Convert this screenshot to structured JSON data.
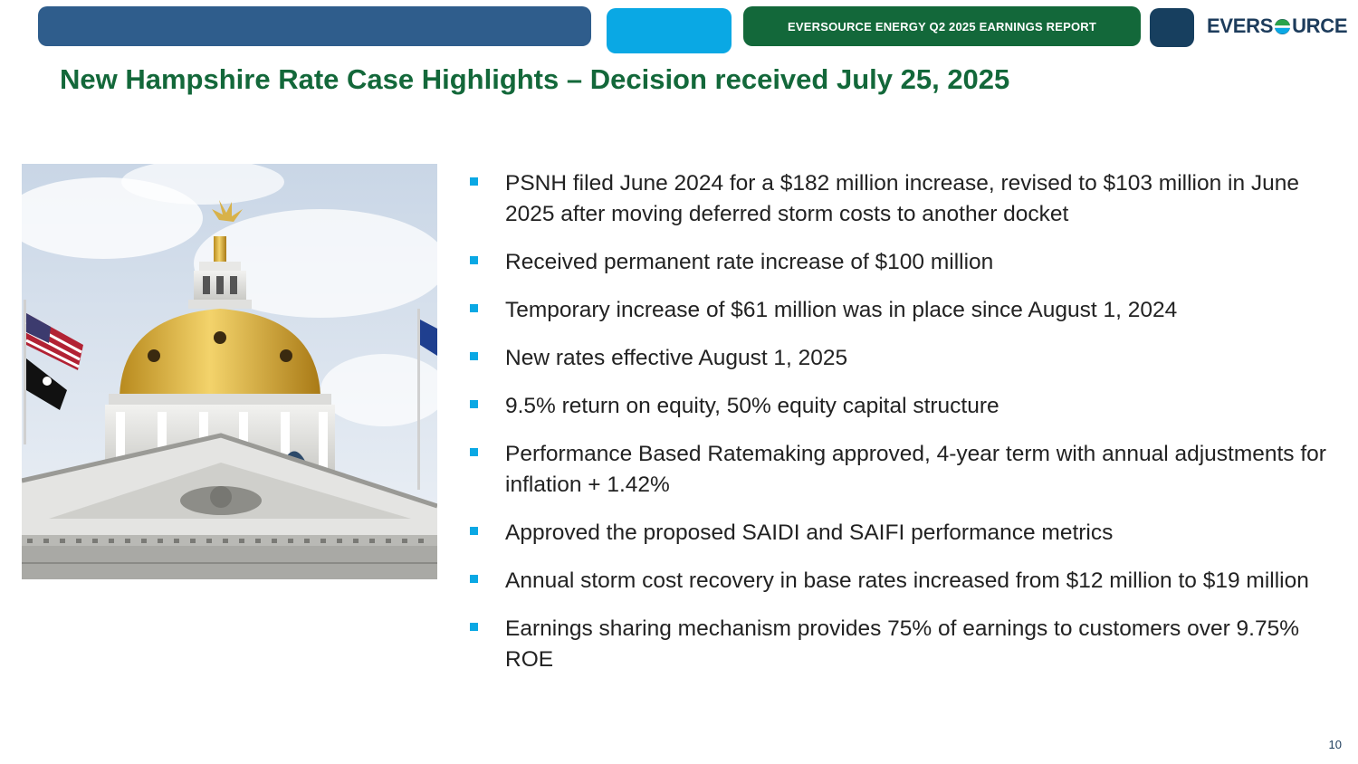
{
  "header": {
    "report_label": "EVERSOURCE ENERGY Q2 2025 EARNINGS REPORT",
    "logo_text_left": "EVERS",
    "logo_text_right": "URCE",
    "colors": {
      "blue": "#2f5d8c",
      "cyan": "#0aa8e4",
      "green": "#13683a",
      "navy": "#173f5f"
    }
  },
  "slide": {
    "title": "New Hampshire Rate Case Highlights – Decision received July 25, 2025",
    "photo_icon": "state-house-dome-photo",
    "bullets": [
      "PSNH filed June 2024 for a $182 million increase, revised to $103 million in June 2025 after moving deferred storm costs to another docket",
      "Received permanent rate increase of $100 million",
      "Temporary increase of $61 million was in place since August 1, 2024",
      "New rates effective August 1, 2025",
      "9.5% return on equity, 50% equity capital structure",
      "Performance Based Ratemaking approved, 4-year term with annual adjustments for inflation + 1.42%",
      "Approved the proposed SAIDI and SAIFI performance metrics",
      "Annual storm cost recovery in base rates increased from $12 million to $19 million",
      "Earnings sharing mechanism provides 75% of earnings to customers over 9.75% ROE"
    ],
    "page_number": "10"
  }
}
